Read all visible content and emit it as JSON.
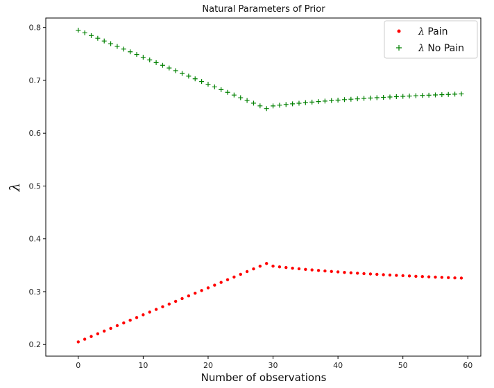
{
  "chart_data": {
    "type": "scatter",
    "title": "Natural Parameters of Prior",
    "xlabel": "Number of observations",
    "ylabel": "λ",
    "xlim": [
      -5,
      62
    ],
    "ylim": [
      0.178,
      0.818
    ],
    "xticks": [
      0,
      10,
      20,
      30,
      40,
      50,
      60
    ],
    "yticks": [
      0.2,
      0.3,
      0.4,
      0.5,
      0.6,
      0.7,
      0.8
    ],
    "grid": false,
    "legend_position": "top-right",
    "series": [
      {
        "name": "λ Pain",
        "marker": "dot",
        "color": "#ff0000",
        "x_start": 0,
        "x_step": 1,
        "values": [
          0.205,
          0.2101,
          0.2152,
          0.2203,
          0.2255,
          0.2306,
          0.2357,
          0.2408,
          0.2459,
          0.251,
          0.2562,
          0.2613,
          0.2664,
          0.2715,
          0.2766,
          0.2817,
          0.2869,
          0.292,
          0.2971,
          0.3022,
          0.3073,
          0.3124,
          0.3176,
          0.3227,
          0.3278,
          0.3329,
          0.338,
          0.3431,
          0.3483,
          0.3534,
          0.3484,
          0.347,
          0.3457,
          0.3445,
          0.3433,
          0.3422,
          0.3412,
          0.3402,
          0.3392,
          0.3383,
          0.3374,
          0.3365,
          0.3357,
          0.335,
          0.3342,
          0.3335,
          0.3328,
          0.3321,
          0.3315,
          0.3309,
          0.3303,
          0.3297,
          0.3291,
          0.3286,
          0.3281,
          0.3276,
          0.3271,
          0.3266,
          0.3261,
          0.3257
        ]
      },
      {
        "name": "λ No Pain",
        "marker": "plus",
        "color": "#008000",
        "x_start": 0,
        "x_step": 1,
        "values": [
          0.795,
          0.7899,
          0.7848,
          0.7797,
          0.7745,
          0.7694,
          0.7643,
          0.7592,
          0.7541,
          0.749,
          0.7438,
          0.7387,
          0.7336,
          0.7285,
          0.7234,
          0.7183,
          0.7131,
          0.708,
          0.7029,
          0.6978,
          0.6927,
          0.6876,
          0.6824,
          0.6773,
          0.6722,
          0.6671,
          0.662,
          0.6569,
          0.6517,
          0.6466,
          0.6516,
          0.653,
          0.6543,
          0.6555,
          0.6567,
          0.6578,
          0.6588,
          0.6598,
          0.6608,
          0.6617,
          0.6626,
          0.6635,
          0.6643,
          0.665,
          0.6658,
          0.6665,
          0.6672,
          0.6679,
          0.6685,
          0.6691,
          0.6697,
          0.6703,
          0.6709,
          0.6714,
          0.6719,
          0.6724,
          0.6729,
          0.6734,
          0.6739,
          0.6743
        ]
      }
    ]
  }
}
